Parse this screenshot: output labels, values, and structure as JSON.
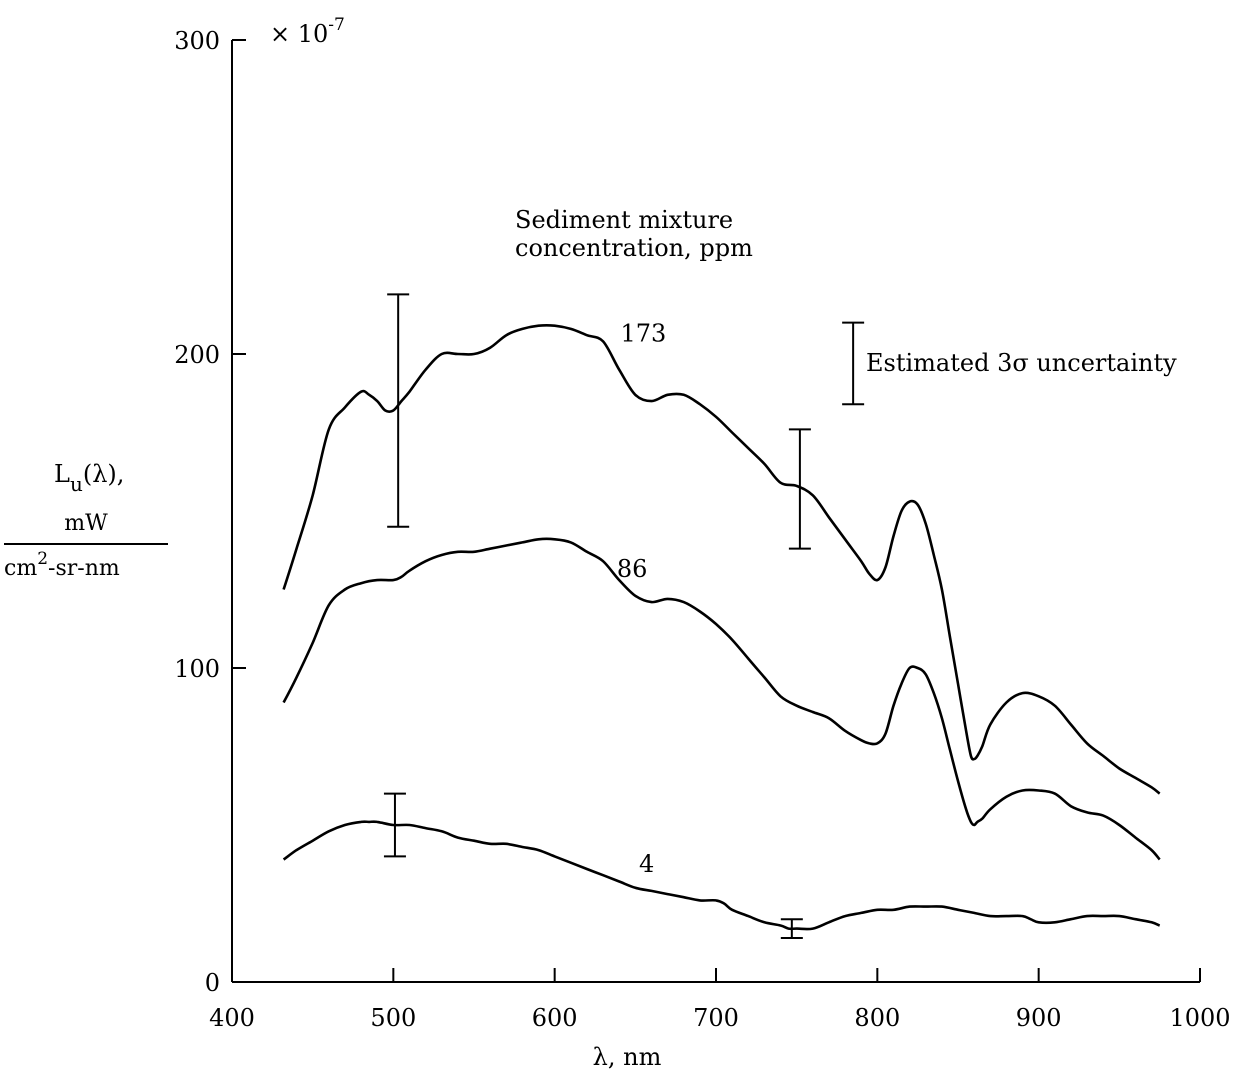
{
  "chart_data": {
    "type": "line",
    "title": "",
    "xlabel": "λ, nm",
    "xlim": [
      400,
      1000
    ],
    "ylim": [
      0,
      300
    ],
    "y_multiplier": "× 10",
    "y_multiplier_exp": "-7",
    "ylabel": {
      "symbol": "L",
      "subscript": "u",
      "argument": "(λ),",
      "numerator": "mW",
      "denom_a": "cm",
      "denom_sup": "2",
      "denom_b": "-sr-nm"
    },
    "x_ticks": [
      "400",
      "500",
      "600",
      "700",
      "800",
      "900",
      "1000"
    ],
    "y_ticks": [
      "0",
      "100",
      "200",
      "300"
    ],
    "legend_title": [
      "Sediment mixture",
      "concentration, ppm"
    ],
    "uncertainty_label": "Estimated 3σ uncertainty",
    "grid": false,
    "series": [
      {
        "name": "173",
        "x": [
          432,
          440,
          450,
          460,
          470,
          480,
          485,
          490,
          495,
          500,
          505,
          510,
          520,
          530,
          540,
          550,
          560,
          570,
          580,
          590,
          600,
          610,
          620,
          630,
          640,
          650,
          660,
          670,
          680,
          690,
          700,
          710,
          720,
          730,
          740,
          750,
          760,
          770,
          780,
          790,
          795,
          800,
          805,
          810,
          815,
          820,
          825,
          830,
          835,
          840,
          845,
          850,
          855,
          858,
          860,
          862,
          865,
          870,
          880,
          890,
          900,
          910,
          920,
          930,
          940,
          950,
          960,
          970,
          975
        ],
        "y": [
          125,
          138,
          155,
          176,
          183,
          188,
          187,
          185,
          182,
          182,
          185,
          188,
          195,
          200,
          200,
          200,
          202,
          206,
          208,
          209,
          209,
          208,
          206,
          204,
          195,
          187,
          185,
          187,
          187,
          184,
          180,
          175,
          170,
          165,
          159,
          158,
          155,
          148,
          141,
          134,
          130,
          128,
          132,
          142,
          150,
          153,
          152,
          146,
          136,
          125,
          110,
          95,
          80,
          72,
          71,
          72,
          75,
          82,
          89,
          92,
          91,
          88,
          82,
          76,
          72,
          68,
          65,
          62,
          60
        ]
      },
      {
        "name": "86",
        "x": [
          432,
          440,
          450,
          460,
          470,
          480,
          490,
          500,
          505,
          510,
          520,
          530,
          540,
          550,
          560,
          570,
          580,
          590,
          600,
          610,
          620,
          630,
          640,
          650,
          660,
          670,
          680,
          690,
          700,
          710,
          720,
          730,
          740,
          750,
          760,
          770,
          780,
          790,
          795,
          800,
          805,
          810,
          815,
          820,
          825,
          830,
          835,
          840,
          845,
          850,
          855,
          858,
          860,
          862,
          865,
          870,
          880,
          890,
          900,
          910,
          920,
          930,
          940,
          950,
          960,
          970,
          975
        ],
        "y": [
          89,
          97,
          108,
          120,
          125,
          127,
          128,
          128,
          129,
          131,
          134,
          136,
          137,
          137,
          138,
          139,
          140,
          141,
          141,
          140,
          137,
          134,
          128,
          123,
          121,
          122,
          121,
          118,
          114,
          109,
          103,
          97,
          91,
          88,
          86,
          84,
          80,
          77,
          76,
          76,
          79,
          88,
          95,
          100,
          100,
          98,
          92,
          84,
          74,
          64,
          55,
          51,
          50,
          51,
          52,
          55,
          59,
          61,
          61,
          60,
          56,
          54,
          53,
          50,
          46,
          42,
          39
        ]
      },
      {
        "name": "4",
        "x": [
          432,
          440,
          450,
          460,
          470,
          480,
          485,
          490,
          500,
          510,
          520,
          530,
          540,
          550,
          560,
          570,
          580,
          590,
          600,
          610,
          620,
          630,
          640,
          650,
          660,
          670,
          680,
          690,
          700,
          705,
          710,
          720,
          730,
          740,
          745,
          750,
          760,
          770,
          780,
          790,
          800,
          810,
          820,
          830,
          840,
          850,
          860,
          870,
          880,
          890,
          895,
          900,
          910,
          920,
          930,
          940,
          950,
          960,
          970,
          975
        ],
        "y": [
          39,
          42,
          45,
          48,
          50,
          51,
          51,
          51,
          50,
          50,
          49,
          48,
          46,
          45,
          44,
          44,
          43,
          42,
          40,
          38,
          36,
          34,
          32,
          30,
          29,
          28,
          27,
          26,
          26,
          25,
          23,
          21,
          19,
          18,
          17,
          17,
          17,
          19,
          21,
          22,
          23,
          23,
          24,
          24,
          24,
          23,
          22,
          21,
          21,
          21,
          20,
          19,
          19,
          20,
          21,
          21,
          21,
          20,
          19,
          18
        ]
      }
    ],
    "series_labels": [
      {
        "text": "173",
        "x": 655,
        "y": 204
      },
      {
        "text": "86",
        "x": 648,
        "y": 129
      },
      {
        "text": "4",
        "x": 657,
        "y": 35
      }
    ],
    "error_bars": [
      {
        "x": 503,
        "low": 145,
        "high": 219
      },
      {
        "x": 752,
        "low": 138,
        "high": 176
      },
      {
        "x": 501,
        "low": 40,
        "high": 60
      },
      {
        "x": 747,
        "low": 14,
        "high": 20
      }
    ],
    "legend_error_bar": {
      "x": 785,
      "low": 184,
      "high": 210
    }
  }
}
